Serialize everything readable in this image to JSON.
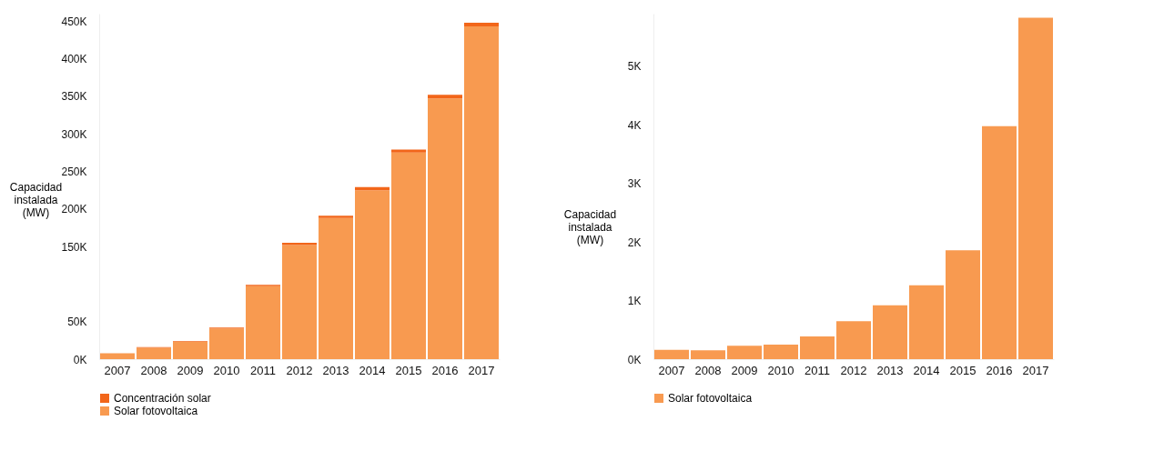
{
  "chart_data": [
    {
      "type": "bar",
      "stacked": true,
      "ylabel": "Capacidad instalada (MW)",
      "categories": [
        "2007",
        "2008",
        "2009",
        "2010",
        "2011",
        "2012",
        "2013",
        "2014",
        "2015",
        "2016",
        "2017"
      ],
      "series": [
        {
          "name": "Solar fotovoltaica",
          "color": "#f89a50",
          "values": [
            8,
            15,
            23,
            41,
            97,
            152,
            188,
            225,
            275,
            347,
            443
          ]
        },
        {
          "name": "Concentración solar",
          "color": "#f2661a",
          "values": [
            null,
            1,
            1,
            1,
            2,
            3,
            3,
            4,
            4,
            5,
            5
          ]
        }
      ],
      "ylim": [
        0,
        460
      ],
      "yticks": [
        {
          "value": 0,
          "label": "0K"
        },
        {
          "value": 50,
          "label": "50K"
        },
        {
          "value": 150,
          "label": "150K"
        },
        {
          "value": 200,
          "label": "200K"
        },
        {
          "value": 250,
          "label": "250K"
        },
        {
          "value": 300,
          "label": "300K"
        },
        {
          "value": 350,
          "label": "350K"
        },
        {
          "value": 400,
          "label": "400K"
        },
        {
          "value": 450,
          "label": "450K"
        }
      ],
      "grid": false,
      "legend": "bottom left"
    },
    {
      "type": "bar",
      "ylabel": "Capacidad instalada (MW)",
      "categories": [
        "2007",
        "2008",
        "2009",
        "2010",
        "2011",
        "2012",
        "2013",
        "2014",
        "2015",
        "2016",
        "2017"
      ],
      "series": [
        {
          "name": "Solar fotovoltaica",
          "color": "#f89a50",
          "values": [
            0.16,
            0.15,
            0.23,
            0.25,
            0.39,
            0.65,
            0.92,
            1.26,
            1.86,
            3.98,
            5.83
          ]
        }
      ],
      "ylim": [
        0,
        5.9
      ],
      "yticks": [
        {
          "value": 0,
          "label": "0K"
        },
        {
          "value": 1,
          "label": "1K"
        },
        {
          "value": 2,
          "label": "2K"
        },
        {
          "value": 3,
          "label": "3K"
        },
        {
          "value": 4,
          "label": "4K"
        },
        {
          "value": 5,
          "label": "5K"
        }
      ],
      "grid": false,
      "legend": "bottom left"
    }
  ]
}
